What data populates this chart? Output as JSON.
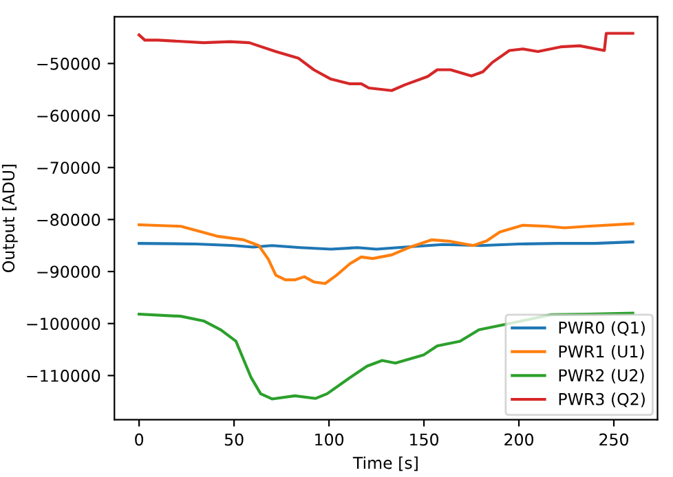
{
  "chart_data": {
    "type": "line",
    "xlabel": "Time [s]",
    "ylabel": "Output [ADU]",
    "xlim": [
      -13,
      273
    ],
    "ylim": [
      -118500,
      -41000
    ],
    "xticks": [
      0,
      50,
      100,
      150,
      200,
      250
    ],
    "yticks": [
      {
        "value": -110000,
        "label": "−110000"
      },
      {
        "value": -100000,
        "label": "−100000"
      },
      {
        "value": -90000,
        "label": "−90000"
      },
      {
        "value": -80000,
        "label": "−80000"
      },
      {
        "value": -70000,
        "label": "−70000"
      },
      {
        "value": -60000,
        "label": "−60000"
      },
      {
        "value": -50000,
        "label": "−50000"
      }
    ],
    "grid": false,
    "legend": "bottom right",
    "line_style": "solid",
    "marker": "none",
    "series": [
      {
        "name": "PWR0 (Q1)",
        "color": "#1f77b4",
        "x": [
          0,
          30,
          50,
          60,
          70,
          85,
          101,
          115,
          125,
          140,
          160,
          180,
          200,
          220,
          240,
          260
        ],
        "values": [
          -84600,
          -84700,
          -85000,
          -85300,
          -85000,
          -85400,
          -85700,
          -85400,
          -85700,
          -85300,
          -84800,
          -85000,
          -84700,
          -84600,
          -84600,
          -84300
        ]
      },
      {
        "name": "PWR1 (U1)",
        "color": "#ff7f0e",
        "x": [
          0,
          22,
          41,
          55,
          63,
          68,
          72,
          77,
          82,
          87,
          92,
          98,
          104,
          111,
          117,
          123,
          133,
          142,
          154,
          164,
          176,
          183,
          190,
          202,
          215,
          224,
          236,
          260
        ],
        "values": [
          -81000,
          -81300,
          -83200,
          -83900,
          -85000,
          -87600,
          -90700,
          -91600,
          -91600,
          -91000,
          -92000,
          -92300,
          -90700,
          -88500,
          -87200,
          -87500,
          -86800,
          -85400,
          -83900,
          -84200,
          -85000,
          -84100,
          -82400,
          -81100,
          -81300,
          -81600,
          -81300,
          -80800
        ]
      },
      {
        "name": "PWR2 (U2)",
        "color": "#2ca02c",
        "x": [
          0,
          22,
          34,
          43,
          51,
          55,
          59,
          64,
          70,
          82,
          93,
          99,
          111,
          120,
          128,
          135,
          150,
          157,
          169,
          179,
          191,
          217,
          236,
          260
        ],
        "values": [
          -98200,
          -98600,
          -99500,
          -101200,
          -103400,
          -106900,
          -110400,
          -113500,
          -114500,
          -113900,
          -114400,
          -113500,
          -110400,
          -108200,
          -107100,
          -107600,
          -106000,
          -104300,
          -103400,
          -101200,
          -100300,
          -98300,
          -98200,
          -98000
        ]
      },
      {
        "name": "PWR3 (Q2)",
        "color": "#d62728",
        "x": [
          0,
          3,
          10,
          34,
          48,
          58,
          72,
          84,
          92,
          101,
          111,
          117,
          121,
          133,
          140,
          152,
          157,
          164,
          175,
          181,
          186,
          195,
          202,
          210,
          222,
          232,
          245,
          246,
          260
        ],
        "values": [
          -44500,
          -45500,
          -45500,
          -46000,
          -45800,
          -46000,
          -47700,
          -49000,
          -51200,
          -53000,
          -53900,
          -53900,
          -54700,
          -55200,
          -54100,
          -52500,
          -51200,
          -51200,
          -52400,
          -51600,
          -49800,
          -47500,
          -47200,
          -47700,
          -46800,
          -46600,
          -47500,
          -44200,
          -44200
        ]
      }
    ]
  }
}
